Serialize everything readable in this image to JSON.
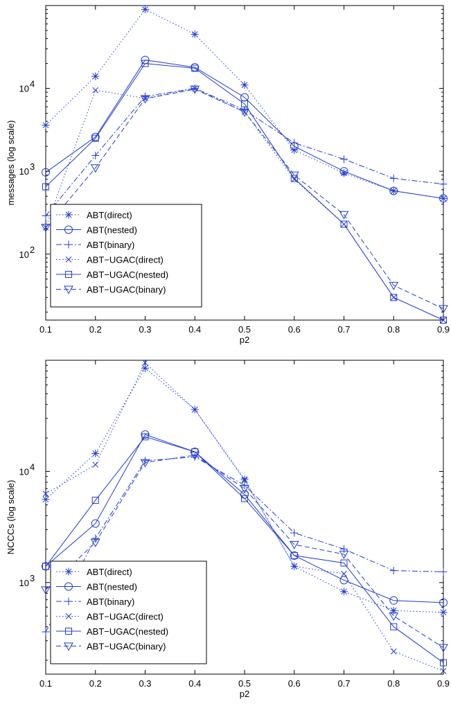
{
  "colors": {
    "series": "#1f3bd6",
    "axes": "#000000",
    "background": "#ffffff"
  },
  "chart_data": [
    {
      "type": "line",
      "title": "",
      "xlabel": "p2",
      "ylabel": "messages (log scale)",
      "yscale": "log",
      "xlim": [
        0.1,
        0.9
      ],
      "ylim": [
        16,
        100000
      ],
      "x": [
        0.1,
        0.2,
        0.3,
        0.4,
        0.5,
        0.6,
        0.7,
        0.8,
        0.9
      ],
      "xticks": [
        "0.1",
        "0.2",
        "0.3",
        "0.4",
        "0.5",
        "0.6",
        "0.7",
        "0.8",
        "0.9"
      ],
      "yticks": [
        {
          "value": 100,
          "base": "10",
          "exp": "2"
        },
        {
          "value": 1000,
          "base": "10",
          "exp": "3"
        },
        {
          "value": 10000,
          "base": "10",
          "exp": "4"
        }
      ],
      "grid": false,
      "legend_position": "bottom-left",
      "series": [
        {
          "name": "ABT(direct)",
          "marker": "asterisk",
          "line": "dotted",
          "values": [
            3600,
            14000,
            90000,
            45000,
            11000,
            1800,
            950,
            580,
            470
          ]
        },
        {
          "name": "ABT(nested)",
          "marker": "circle",
          "line": "solid",
          "values": [
            970,
            2600,
            22000,
            18000,
            7800,
            2000,
            1000,
            580,
            470
          ]
        },
        {
          "name": "ABT(binary)",
          "marker": "plus",
          "line": "dashdot",
          "values": [
            290,
            1550,
            8000,
            10000,
            5500,
            2200,
            1400,
            820,
            700
          ]
        },
        {
          "name": "ABT−UGAC(direct)",
          "marker": "x",
          "line": "dotted",
          "values": [
            210,
            9500,
            7600,
            10000,
            5200,
            800,
            230,
            30,
            16
          ]
        },
        {
          "name": "ABT−UGAC(nested)",
          "marker": "square",
          "line": "solid",
          "values": [
            650,
            2500,
            20000,
            17500,
            6500,
            820,
            230,
            30,
            16
          ]
        },
        {
          "name": "ABT−UGAC(binary)",
          "marker": "triangle-down",
          "line": "dashed",
          "values": [
            210,
            1100,
            7500,
            9800,
            5200,
            900,
            300,
            42,
            22
          ]
        }
      ]
    },
    {
      "type": "line",
      "title": "",
      "xlabel": "p2",
      "ylabel": "NCCCs (log scale)",
      "yscale": "log",
      "xlim": [
        0.1,
        0.9
      ],
      "ylim": [
        150,
        100000
      ],
      "x": [
        0.1,
        0.2,
        0.3,
        0.4,
        0.5,
        0.6,
        0.7,
        0.8,
        0.9
      ],
      "xticks": [
        "0.1",
        "0.2",
        "0.3",
        "0.4",
        "0.5",
        "0.6",
        "0.7",
        "0.8",
        "0.9"
      ],
      "yticks": [
        {
          "value": 1000,
          "base": "10",
          "exp": "3"
        },
        {
          "value": 10000,
          "base": "10",
          "exp": "4"
        }
      ],
      "grid": false,
      "legend_position": "bottom-left",
      "series": [
        {
          "name": "ABT(direct)",
          "marker": "asterisk",
          "line": "dotted",
          "values": [
            5600,
            14500,
            85000,
            36000,
            8500,
            1400,
            830,
            560,
            540
          ]
        },
        {
          "name": "ABT(nested)",
          "marker": "circle",
          "line": "solid",
          "values": [
            1400,
            3400,
            21500,
            15000,
            6200,
            1750,
            1050,
            690,
            660
          ]
        },
        {
          "name": "ABT(binary)",
          "marker": "plus",
          "line": "dashdot",
          "values": [
            360,
            2500,
            12500,
            13500,
            7500,
            2800,
            2000,
            1280,
            1250
          ]
        },
        {
          "name": "ABT−UGAC(direct)",
          "marker": "x",
          "line": "dotted",
          "values": [
            6300,
            11500,
            95000,
            36000,
            8300,
            1400,
            1200,
            240,
            160
          ]
        },
        {
          "name": "ABT−UGAC(nested)",
          "marker": "square",
          "line": "solid",
          "values": [
            1400,
            5500,
            20500,
            15000,
            5700,
            1750,
            1500,
            400,
            190
          ]
        },
        {
          "name": "ABT−UGAC(binary)",
          "marker": "triangle-down",
          "line": "dashed",
          "values": [
            860,
            2300,
            12000,
            14000,
            7000,
            2200,
            1800,
            500,
            260
          ]
        }
      ]
    }
  ]
}
